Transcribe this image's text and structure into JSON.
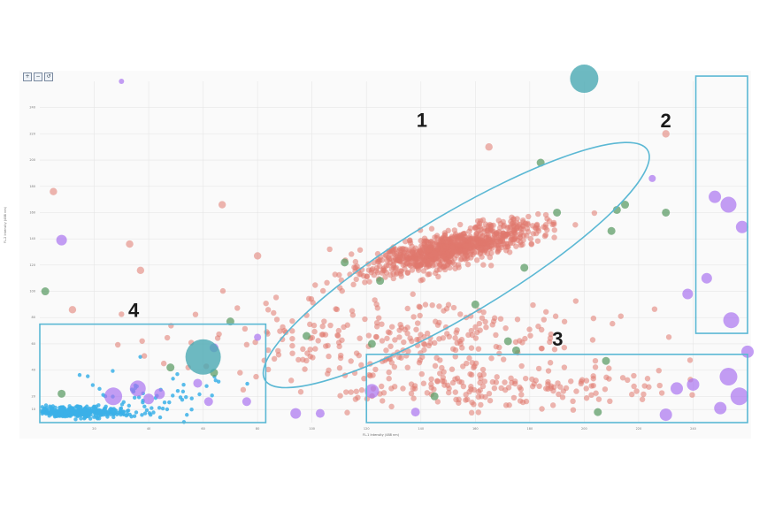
{
  "toolbar": {
    "icons": [
      "zoom-icon",
      "zoom-out-icon",
      "reset-zoom-icon"
    ]
  },
  "chart_data": {
    "type": "scatter",
    "title": "",
    "xlabel": "FL-1 Intensity (488 nm)",
    "ylabel": "FL-2 Intensity (488 nm)",
    "xlim": [
      0,
      260
    ],
    "ylim": [
      0,
      260
    ],
    "grid": true,
    "xticks": [
      20,
      40,
      60,
      80,
      100,
      120,
      140,
      160,
      180,
      200,
      220,
      240
    ],
    "xtick_labels": [
      "20",
      "40",
      "60",
      "80",
      "100",
      "120",
      "140",
      "160",
      "180",
      "200",
      "220",
      "240"
    ],
    "yticks": [
      10,
      20,
      40,
      60,
      80,
      100,
      120,
      140,
      160,
      180,
      200,
      220,
      240
    ],
    "ytick_labels": [
      "10",
      "20",
      "40",
      "60",
      "80",
      "100",
      "120",
      "140",
      "160",
      "180",
      "200",
      "220",
      "240"
    ],
    "colors": {
      "red": "#e0796d",
      "green": "#5f9e68",
      "purple": "#a974f0",
      "blue": "#3bb0e8",
      "teal": "#4aa9b3",
      "gate": "#5bb8d4"
    },
    "series": [
      {
        "color": "red",
        "clusters": [
          {
            "center": [
              152,
              133
            ],
            "spread": [
              28,
              12
            ],
            "count": 900
          },
          {
            "center": [
              135,
              60
            ],
            "spread": [
              70,
              35
            ],
            "count": 330
          },
          {
            "center": [
              175,
              25
            ],
            "spread": [
              55,
              12
            ],
            "count": 120
          }
        ],
        "points": [
          [
            5,
            176
          ],
          [
            165,
            210
          ],
          [
            230,
            220
          ],
          [
            67,
            166
          ],
          [
            37,
            116
          ],
          [
            33,
            136
          ],
          [
            80,
            127
          ],
          [
            12,
            86
          ]
        ]
      },
      {
        "color": "green",
        "points": [
          [
            184,
            198
          ],
          [
            212,
            162
          ],
          [
            178,
            118
          ],
          [
            210,
            146
          ],
          [
            190,
            160
          ],
          [
            125,
            108
          ],
          [
            160,
            90
          ],
          [
            208,
            47
          ],
          [
            230,
            160
          ],
          [
            215,
            166
          ],
          [
            122,
            60
          ],
          [
            145,
            20
          ],
          [
            205,
            8
          ],
          [
            175,
            55
          ],
          [
            2,
            100
          ],
          [
            70,
            77
          ],
          [
            64,
            38
          ],
          [
            48,
            42
          ],
          [
            8,
            22
          ],
          [
            98,
            66
          ],
          [
            172,
            62
          ],
          [
            112,
            122
          ]
        ]
      },
      {
        "color": "purple",
        "points": [
          [
            8,
            139,
            6
          ],
          [
            30,
            260,
            3
          ],
          [
            225,
            186,
            4
          ],
          [
            248,
            172,
            7
          ],
          [
            253,
            166,
            9
          ],
          [
            258,
            149,
            7
          ],
          [
            245,
            110,
            6
          ],
          [
            238,
            98,
            6
          ],
          [
            254,
            78,
            9
          ],
          [
            260,
            54,
            7
          ],
          [
            253,
            35,
            10
          ],
          [
            240,
            29,
            7
          ],
          [
            257,
            20,
            10
          ],
          [
            250,
            11,
            7
          ],
          [
            230,
            6,
            7
          ],
          [
            234,
            26,
            7
          ],
          [
            122,
            24,
            8
          ],
          [
            27,
            20,
            10
          ],
          [
            36,
            26,
            9
          ],
          [
            44,
            22,
            6
          ],
          [
            40,
            18,
            6
          ],
          [
            64,
            57,
            5
          ],
          [
            58,
            30,
            5
          ],
          [
            62,
            16,
            5
          ],
          [
            76,
            16,
            5
          ],
          [
            80,
            65,
            4
          ],
          [
            94,
            7,
            6
          ],
          [
            103,
            7,
            5
          ],
          [
            138,
            8,
            5
          ]
        ]
      },
      {
        "color": "blue",
        "clusters": [
          {
            "center": [
              14,
              8
            ],
            "spread": [
              16,
              4
            ],
            "count": 380
          },
          {
            "center": [
              45,
              20
            ],
            "spread": [
              25,
              20
            ],
            "count": 60
          }
        ]
      },
      {
        "color": "teal",
        "points": [
          [
            60,
            50,
            20
          ],
          [
            200,
            262,
            16
          ]
        ]
      }
    ],
    "gates": [
      {
        "label": "1",
        "shape": "ellipse",
        "center": [
          153,
          120
        ],
        "radii": [
          82,
          38
        ],
        "rotation_deg": 31
      },
      {
        "label": "2",
        "shape": "rect",
        "x": [
          241,
          262
        ],
        "y": [
          68,
          264
        ]
      },
      {
        "label": "3",
        "shape": "rect",
        "x": [
          120,
          262
        ],
        "y": [
          0,
          52
        ]
      },
      {
        "label": "4",
        "shape": "rect",
        "x": [
          0,
          83
        ],
        "y": [
          0,
          75
        ]
      }
    ]
  }
}
